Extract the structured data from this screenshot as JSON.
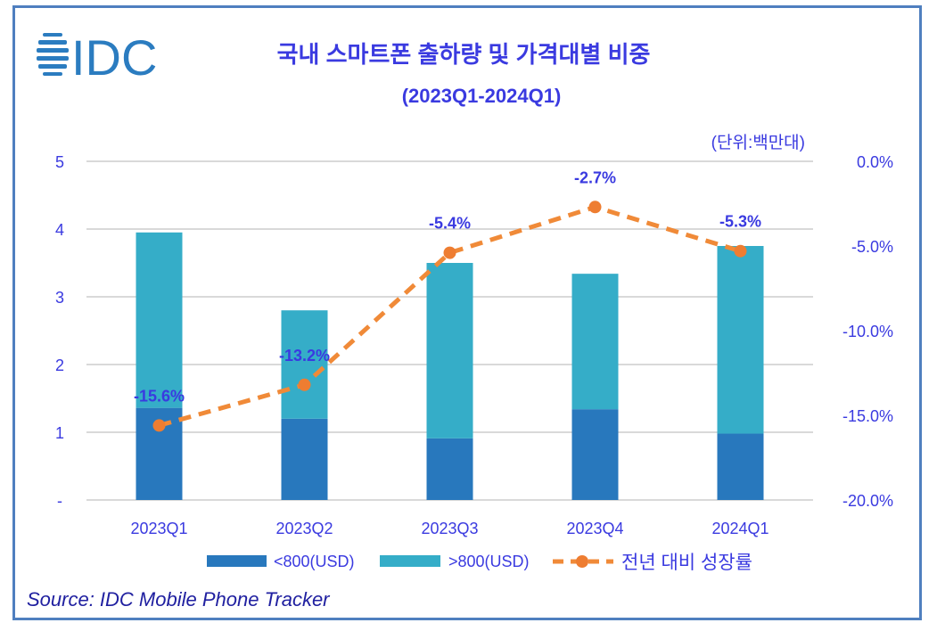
{
  "logo_text": "IDC",
  "title": "국내 스마트폰 출하량 및 가격대별 비중",
  "subtitle": "(2023Q1-2024Q1)",
  "unit_note": "(단위:백만대)",
  "source": "Source: IDC Mobile Phone Tracker",
  "chart_data": {
    "type": "bar",
    "stacked": true,
    "categories": [
      "2023Q1",
      "2023Q2",
      "2023Q3",
      "2023Q4",
      "2024Q1"
    ],
    "series": [
      {
        "name": "<800(USD)",
        "type": "bar",
        "axis": "left",
        "color": "#2878bd",
        "values": [
          1.36,
          1.2,
          0.91,
          1.34,
          0.98
        ]
      },
      {
        "name": ">800(USD)",
        "type": "bar",
        "axis": "left",
        "color": "#35adc8",
        "values": [
          2.59,
          1.6,
          2.59,
          2.0,
          2.77
        ]
      },
      {
        "name": "전년 대비 성장률",
        "type": "line",
        "axis": "right",
        "color": "#f08a38",
        "dashed": true,
        "values": [
          -15.6,
          -13.2,
          -5.4,
          -2.7,
          -5.3
        ],
        "labels": [
          "-15.6%",
          "-13.2%",
          "-5.4%",
          "-2.7%",
          "-5.3%"
        ]
      }
    ],
    "left_axis": {
      "ylim": [
        0,
        5
      ],
      "ticks": [
        "-",
        "1",
        "2",
        "3",
        "4",
        "5"
      ]
    },
    "right_axis": {
      "ylim": [
        -20,
        0
      ],
      "ticks": [
        "-20.0%",
        "-15.0%",
        "-10.0%",
        "-5.0%",
        "0.0%"
      ]
    },
    "grid": true,
    "legend": "bottom"
  }
}
